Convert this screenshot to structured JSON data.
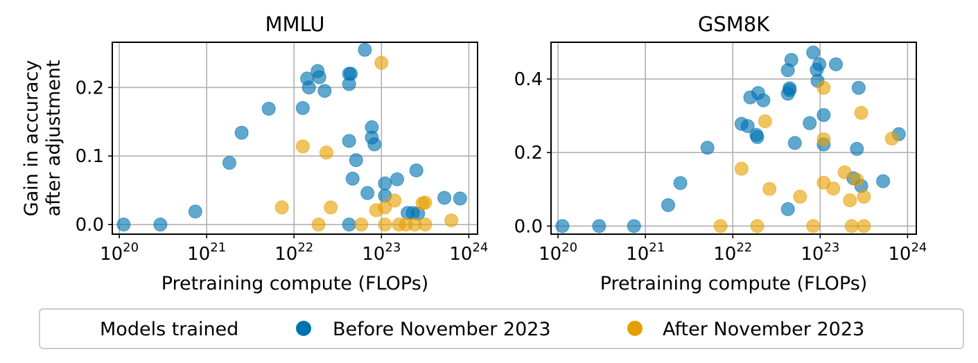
{
  "colors": {
    "before": "#0072B2",
    "after": "#E69F00"
  },
  "legend": {
    "title": "Models trained",
    "before_label": "Before November 2023",
    "after_label": "After November 2023"
  },
  "chart_data": [
    {
      "type": "scatter",
      "title": "MMLU",
      "xlabel": "Pretraining compute (FLOPs)",
      "ylabel": [
        "Gain in accuracy",
        "after adjustment"
      ],
      "xscale": "log",
      "xlim_exp": [
        19.92,
        24.1
      ],
      "ylim": [
        -0.014,
        0.266
      ],
      "xticks_exp": [
        20,
        21,
        22,
        23,
        24
      ],
      "yticks": [
        0.0,
        0.1,
        0.2
      ],
      "ytick_labels": [
        "0.0",
        "0.1",
        "0.2"
      ],
      "series": [
        {
          "name": "Before November 2023",
          "points": [
            [
              20.05,
              0.0
            ],
            [
              20.47,
              0.0
            ],
            [
              20.87,
              0.019
            ],
            [
              21.26,
              0.09
            ],
            [
              21.4,
              0.134
            ],
            [
              21.71,
              0.169
            ],
            [
              22.1,
              0.17
            ],
            [
              22.15,
              0.213
            ],
            [
              22.17,
              0.2
            ],
            [
              22.27,
              0.224
            ],
            [
              22.29,
              0.215
            ],
            [
              22.35,
              0.195
            ],
            [
              22.63,
              0.205
            ],
            [
              22.63,
              0.22
            ],
            [
              22.65,
              0.22
            ],
            [
              22.63,
              0.122
            ],
            [
              22.67,
              0.067
            ],
            [
              22.71,
              0.094
            ],
            [
              22.63,
              0.0
            ],
            [
              22.81,
              0.255
            ],
            [
              22.84,
              0.046
            ],
            [
              22.89,
              0.142
            ],
            [
              22.89,
              0.127
            ],
            [
              22.92,
              0.117
            ],
            [
              23.04,
              0.06
            ],
            [
              23.04,
              0.042
            ],
            [
              23.18,
              0.066
            ],
            [
              23.3,
              0.017
            ],
            [
              23.36,
              0.017
            ],
            [
              23.4,
              0.079
            ],
            [
              23.42,
              0.016
            ],
            [
              23.72,
              0.039
            ],
            [
              23.9,
              0.038
            ]
          ]
        },
        {
          "name": "After November 2023",
          "points": [
            [
              21.86,
              0.025
            ],
            [
              22.1,
              0.114
            ],
            [
              22.37,
              0.105
            ],
            [
              22.42,
              0.025
            ],
            [
              22.28,
              0.0
            ],
            [
              22.77,
              0.0
            ],
            [
              22.94,
              0.021
            ],
            [
              23.0,
              0.236
            ],
            [
              23.04,
              0.0
            ],
            [
              23.04,
              0.025
            ],
            [
              23.15,
              0.035
            ],
            [
              23.2,
              0.0
            ],
            [
              23.28,
              0.0
            ],
            [
              23.38,
              0.0
            ],
            [
              23.47,
              0.031
            ],
            [
              23.5,
              0.032
            ],
            [
              23.5,
              0.0
            ],
            [
              23.8,
              0.006
            ]
          ]
        }
      ]
    },
    {
      "type": "scatter",
      "title": "GSM8K",
      "xlabel": "Pretraining compute (FLOPs)",
      "xscale": "log",
      "xlim_exp": [
        19.92,
        24.1
      ],
      "ylim": [
        -0.022,
        0.5
      ],
      "xticks_exp": [
        20,
        21,
        22,
        23,
        24
      ],
      "yticks": [
        0.0,
        0.2,
        0.4
      ],
      "ytick_labels": [
        "0.0",
        "0.2",
        "0.4"
      ],
      "series": [
        {
          "name": "Before November 2023",
          "points": [
            [
              20.05,
              0.0
            ],
            [
              20.47,
              0.0
            ],
            [
              20.87,
              0.0
            ],
            [
              21.26,
              0.057
            ],
            [
              21.4,
              0.117
            ],
            [
              21.71,
              0.213
            ],
            [
              22.1,
              0.278
            ],
            [
              22.17,
              0.272
            ],
            [
              22.2,
              0.35
            ],
            [
              22.27,
              0.248
            ],
            [
              22.28,
              0.242
            ],
            [
              22.29,
              0.362
            ],
            [
              22.35,
              0.342
            ],
            [
              22.63,
              0.424
            ],
            [
              22.65,
              0.375
            ],
            [
              22.65,
              0.37
            ],
            [
              22.63,
              0.36
            ],
            [
              22.67,
              0.452
            ],
            [
              22.63,
              0.046
            ],
            [
              22.71,
              0.226
            ],
            [
              22.88,
              0.28
            ],
            [
              22.92,
              0.472
            ],
            [
              22.96,
              0.425
            ],
            [
              22.97,
              0.395
            ],
            [
              22.99,
              0.44
            ],
            [
              23.04,
              0.302
            ],
            [
              23.04,
              0.222
            ],
            [
              23.18,
              0.44
            ],
            [
              23.38,
              0.13
            ],
            [
              23.42,
              0.21
            ],
            [
              23.44,
              0.376
            ],
            [
              23.47,
              0.109
            ],
            [
              23.72,
              0.122
            ],
            [
              23.9,
              0.25
            ]
          ]
        },
        {
          "name": "After November 2023",
          "points": [
            [
              21.86,
              0.0
            ],
            [
              22.1,
              0.156
            ],
            [
              22.28,
              0.0
            ],
            [
              22.37,
              0.285
            ],
            [
              22.42,
              0.101
            ],
            [
              22.77,
              0.08
            ],
            [
              22.92,
              0.0
            ],
            [
              23.04,
              0.376
            ],
            [
              23.04,
              0.236
            ],
            [
              23.04,
              0.118
            ],
            [
              23.15,
              0.102
            ],
            [
              23.28,
              0.146
            ],
            [
              23.34,
              0.07
            ],
            [
              23.36,
              0.0
            ],
            [
              23.42,
              0.126
            ],
            [
              23.47,
              0.308
            ],
            [
              23.5,
              0.0
            ],
            [
              23.5,
              0.08
            ],
            [
              23.82,
              0.238
            ]
          ]
        }
      ]
    }
  ]
}
